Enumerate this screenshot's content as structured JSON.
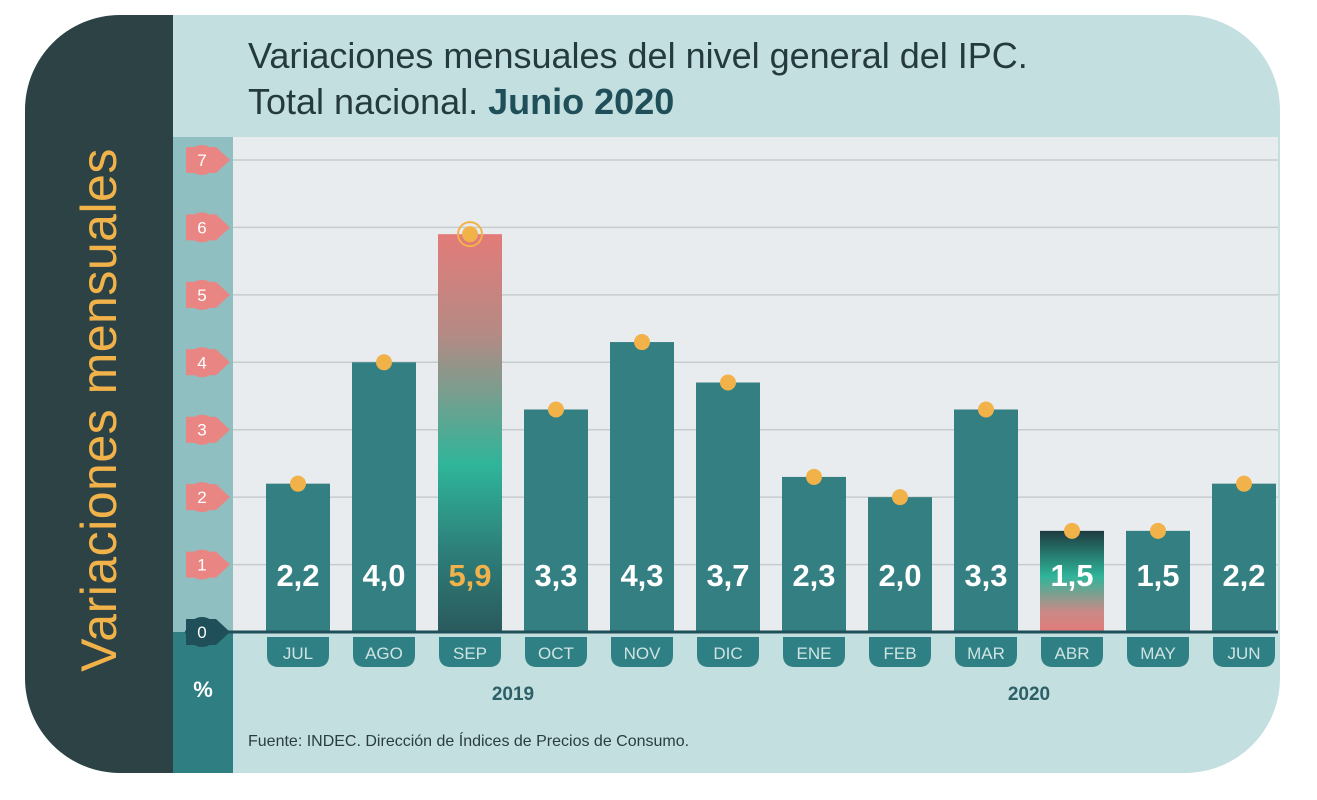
{
  "side_label": "Variaciones mensuales",
  "title": {
    "line1": "Variaciones mensuales del nivel general del IPC.",
    "line2_prefix": "Total nacional. ",
    "line2_bold": "Junio 2020"
  },
  "unit_label": "%",
  "source": "Fuente: INDEC. Dirección de Índices de Precios de Consumo.",
  "colors": {
    "bar": "#337f82",
    "highlight_label": "#f2b24a",
    "value_label": "#ffffff",
    "marker": "#f2b24a",
    "tick_badge": "#e98683",
    "axis": "#1f4f59",
    "month_pill": "#2f8084"
  },
  "chart_data": {
    "type": "bar",
    "categories": [
      "JUL",
      "AGO",
      "SEP",
      "OCT",
      "NOV",
      "DIC",
      "ENE",
      "FEB",
      "MAR",
      "ABR",
      "MAY",
      "JUN"
    ],
    "years": [
      {
        "label": "2019",
        "from": 0,
        "to": 5
      },
      {
        "label": "2020",
        "from": 6,
        "to": 11
      }
    ],
    "values": [
      2.2,
      4.0,
      5.9,
      3.3,
      4.3,
      3.7,
      2.3,
      2.0,
      3.3,
      1.5,
      1.5,
      2.2
    ],
    "value_labels": [
      "2,2",
      "4,0",
      "5,9",
      "3,3",
      "4,3",
      "3,7",
      "2,3",
      "2,0",
      "3,3",
      "1,5",
      "1,5",
      "2,2"
    ],
    "highlight_max_index": 2,
    "highlight_min_index": 9,
    "yticks": [
      0,
      1,
      2,
      3,
      4,
      5,
      6,
      7
    ],
    "ylim": [
      0,
      7
    ],
    "grid": true
  }
}
